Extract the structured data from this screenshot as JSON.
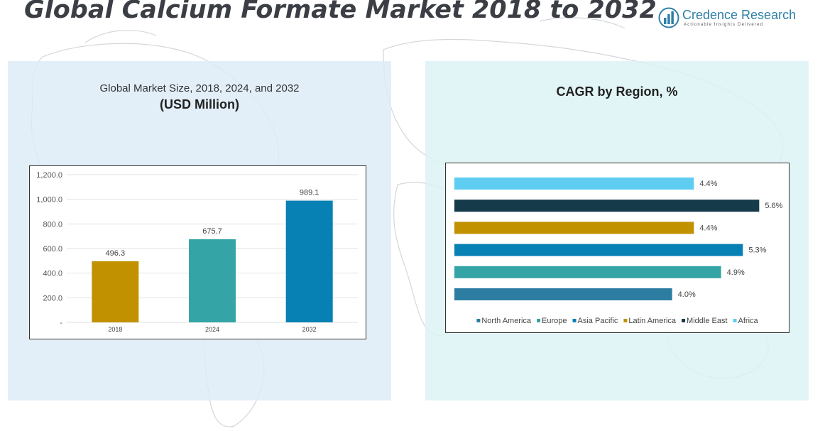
{
  "header": {
    "title": "Global Calcium Formate Market 2018 to 2032"
  },
  "logo": {
    "name": "Credence Research",
    "tagline": "Actionable Insights Delivered",
    "icon": "bar-chart-logo-icon"
  },
  "colors": {
    "gold": "#c29100",
    "teal": "#35a4a6",
    "blue": "#0780b3",
    "dark": "#153a4a",
    "sky": "#5fcdf2",
    "steel": "#2d7da3"
  },
  "left_panel": {
    "title_line1": "Global Market Size, 2018, 2024, and 2032",
    "title_line2": "(USD Million)"
  },
  "right_panel": {
    "title": "CAGR by Region, %"
  },
  "chart_data": [
    {
      "type": "bar",
      "categories": [
        "2018",
        "2024",
        "2032"
      ],
      "values": [
        496.3,
        675.7,
        989.1
      ],
      "value_labels": [
        "496.3",
        "675.7",
        "989.1"
      ],
      "colors": [
        "#c29100",
        "#35a4a6",
        "#0780b3"
      ],
      "ylim": [
        0,
        1200
      ],
      "yticks": [
        0,
        200,
        400,
        600,
        800,
        1000,
        1200
      ],
      "ytick_labels": [
        "-",
        "200.0",
        "400.0",
        "600.0",
        "800.0",
        "1,000.0",
        "1,200.0"
      ],
      "grid": true
    },
    {
      "type": "bar",
      "orientation": "horizontal",
      "categories": [
        "Africa",
        "Middle East",
        "Latin America",
        "Asia Pacific",
        "Europe",
        "North America"
      ],
      "values": [
        4.4,
        5.6,
        4.4,
        5.3,
        4.9,
        4.0
      ],
      "value_labels": [
        "4.4%",
        "5.6%",
        "4.4%",
        "5.3%",
        "4.9%",
        "4.0%"
      ],
      "colors": [
        "#5fcdf2",
        "#153a4a",
        "#c29100",
        "#0780b3",
        "#35a4a6",
        "#2d7da3"
      ],
      "xlim": [
        0,
        6.0
      ],
      "legend": {
        "placement": "bottom",
        "entries": [
          {
            "label": "North America",
            "color": "#2d7da3"
          },
          {
            "label": "Europe",
            "color": "#35a4a6"
          },
          {
            "label": "Asia Pacific",
            "color": "#0780b3"
          },
          {
            "label": "Latin America",
            "color": "#c29100"
          },
          {
            "label": "Middle East",
            "color": "#153a4a"
          },
          {
            "label": "Africa",
            "color": "#5fcdf2"
          }
        ]
      }
    }
  ]
}
